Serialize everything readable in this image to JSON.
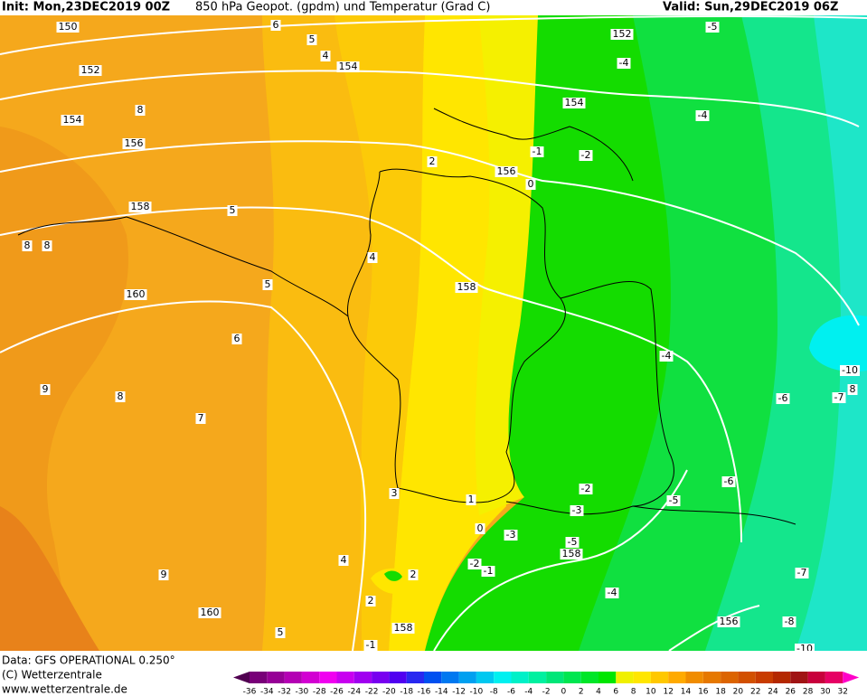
{
  "header": {
    "init": "Init: Mon,23DEC2019 00Z",
    "title": "850 hPa Geopot. (gpdm) und Temperatur (Grad C)",
    "valid": "Valid: Sun,29DEC2019 06Z"
  },
  "map": {
    "labels": [
      "150",
      "5",
      "6",
      "4",
      "152",
      "154",
      "154",
      "8",
      "156",
      "2",
      "158",
      "5",
      "8",
      "8",
      "4",
      "5",
      "160",
      "158",
      "6",
      "9",
      "8",
      "7",
      "3",
      "1",
      "0",
      "4",
      "9",
      "2",
      "160",
      "5",
      "2",
      "158",
      "-1",
      "152",
      "-5",
      "-4",
      "154",
      "-4",
      "-1",
      "-2",
      "156",
      "0",
      "-4",
      "-6",
      "-10",
      "-7",
      "8",
      "-6",
      "-2",
      "-5",
      "-3",
      "-3",
      "-5",
      "158",
      "-2",
      "-1",
      "-7",
      "-4",
      "156",
      "-8",
      "-10"
    ]
  },
  "footer": {
    "data": "Data: GFS OPERATIONAL 0.250°",
    "copyright": "(C) Wetterzentrale",
    "url": "www.wetterzentrale.de"
  },
  "colorbar": {
    "ticks": [
      -36,
      -34,
      -32,
      -30,
      -28,
      -26,
      -24,
      -22,
      -20,
      -18,
      -16,
      -14,
      -12,
      -10,
      -8,
      -6,
      -4,
      -2,
      0,
      2,
      4,
      6,
      8,
      10,
      12,
      14,
      16,
      18,
      20,
      22,
      24,
      26,
      28,
      30,
      32
    ],
    "colors": [
      "#500050",
      "#780078",
      "#960096",
      "#b400b4",
      "#d200d2",
      "#f000f0",
      "#c800f0",
      "#a000f0",
      "#7800f0",
      "#5000f0",
      "#2828f0",
      "#0050f0",
      "#0078f0",
      "#00a0f0",
      "#00c8f0",
      "#00f0f0",
      "#00f0c8",
      "#00f0a0",
      "#00e678",
      "#00e650",
      "#00e628",
      "#00e600",
      "#f0f000",
      "#ffe600",
      "#ffc800",
      "#ffaa00",
      "#f08c00",
      "#e67800",
      "#dc6400",
      "#d25000",
      "#c83c00",
      "#b42800",
      "#a01414",
      "#c8003c",
      "#e60064",
      "#ff00c8"
    ]
  }
}
